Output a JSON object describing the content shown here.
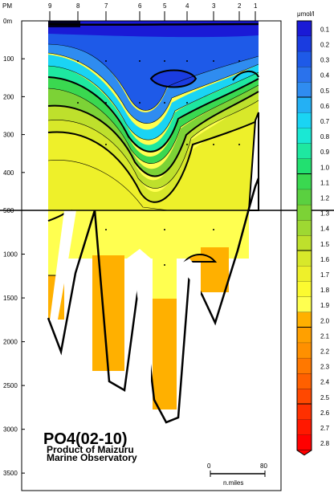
{
  "chart_data": {
    "type": "heatmap",
    "title": "PO4(02-10)",
    "credit": [
      "Product of Maizuru",
      "Marine Observatory"
    ],
    "x_axis_label": "PM",
    "stations": [
      "9",
      "8",
      "7",
      "6",
      "5",
      "4",
      "3",
      "2",
      "1"
    ],
    "upper_y_ticks": [
      "0m",
      "100",
      "200",
      "300",
      "400"
    ],
    "lower_y_ticks": [
      "500",
      "1000",
      "1500",
      "2000",
      "2500",
      "3000",
      "3500"
    ],
    "ylim_upper": [
      0,
      500
    ],
    "ylim_lower": [
      500,
      3700
    ],
    "colorbar_unit": "μmol/l",
    "colorbar_levels": [
      "0.1",
      "0.2",
      "0.3",
      "0.4",
      "0.5",
      "0.6",
      "0.7",
      "0.8",
      "0.9",
      "1.0",
      "1.1",
      "1.2",
      "1.3",
      "1.4",
      "1.5",
      "1.6",
      "1.7",
      "1.8",
      "1.9",
      "2.0",
      "2.1",
      "2.2",
      "2.3",
      "2.4",
      "2.5",
      "2.6",
      "2.7",
      "2.8"
    ],
    "colorbar_colors": [
      "#1a1ad6",
      "#1a3ce0",
      "#1e5ae8",
      "#2a72ec",
      "#2f8cf0",
      "#24b0f4",
      "#1ad4f4",
      "#1ae8d4",
      "#1ee8a0",
      "#22e070",
      "#3ad850",
      "#5ad040",
      "#7cd236",
      "#9ed832",
      "#bee02c",
      "#d8e82a",
      "#eef02a",
      "#fcfa30",
      "#ffff50",
      "#ffb000",
      "#ffa000",
      "#ff9000",
      "#ff7800",
      "#ff6000",
      "#ff4800",
      "#ff3000",
      "#ff1800",
      "#ff0000"
    ],
    "scale_bar": {
      "start": "0",
      "end": "80",
      "unit": "n.miles"
    }
  }
}
